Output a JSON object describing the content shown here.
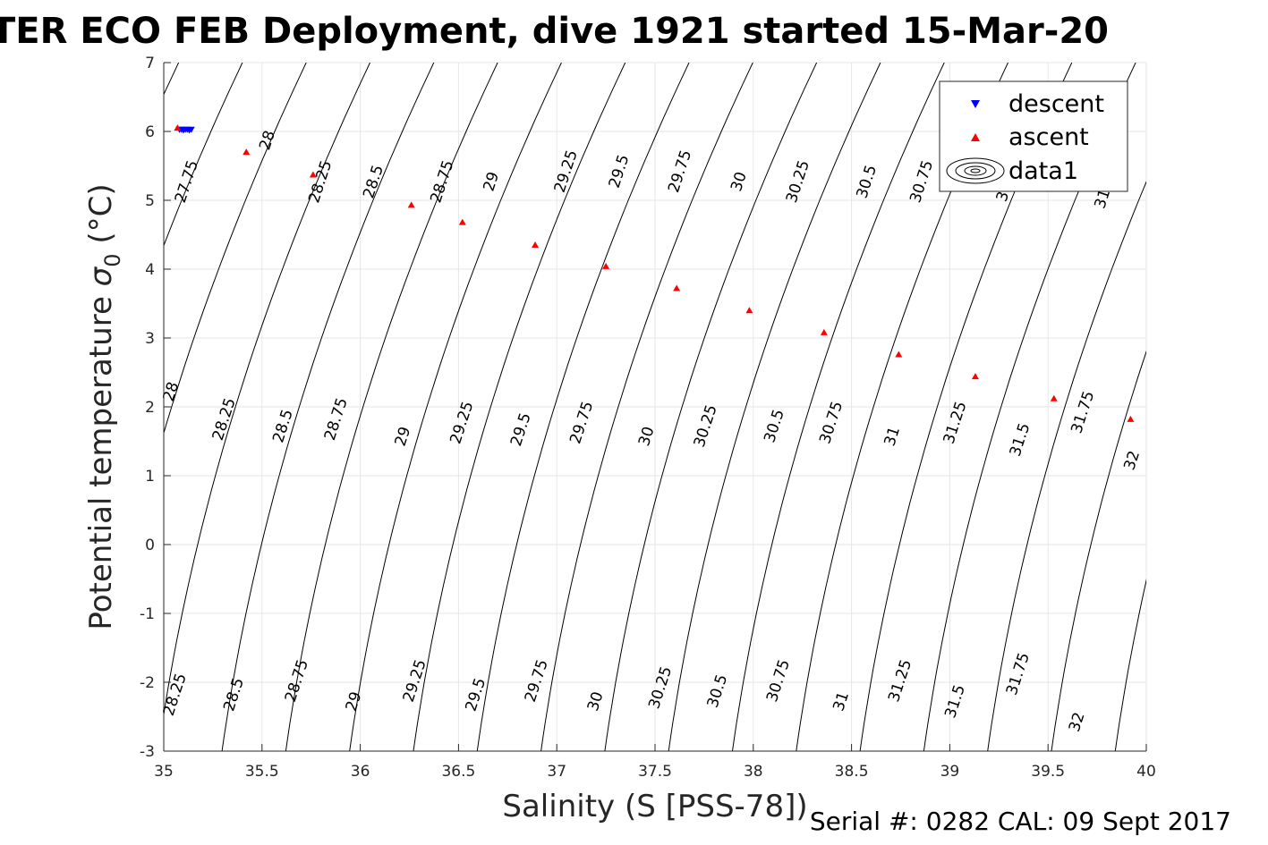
{
  "title": "TER ECO FEB Deployment, dive 1921 started 15-Mar-20",
  "footer": "Serial #: 0282  CAL: 09 Sept 2017",
  "colors": {
    "descent": "#0000ff",
    "ascent": "#ff0000",
    "contour": "#000000",
    "grid": "#e6e6e6",
    "axis": "#262626"
  },
  "chart_data": {
    "type": "scatter",
    "xlabel": "Salinity (S [PSS-78])",
    "ylabel_main": "Potential temperature ",
    "ylabel_sigma": "σ",
    "ylabel_sub": "0",
    "ylabel_unit": " (°C)",
    "xlim": [
      35,
      40
    ],
    "ylim": [
      -3,
      7
    ],
    "xticks": [
      35,
      35.5,
      36,
      36.5,
      37,
      37.5,
      38,
      38.5,
      39,
      39.5,
      40
    ],
    "xtick_labels": [
      "35",
      "35.5",
      "36",
      "36.5",
      "37",
      "37.5",
      "38",
      "38.5",
      "39",
      "39.5",
      "40"
    ],
    "yticks": [
      -3,
      -2,
      -1,
      0,
      1,
      2,
      3,
      4,
      5,
      6,
      7
    ],
    "ytick_labels": [
      "-3",
      "-2",
      "-1",
      "0",
      "1",
      "2",
      "3",
      "4",
      "5",
      "6",
      "7"
    ],
    "grid": true,
    "legend": {
      "position": "top-right",
      "entries": [
        {
          "label": "descent",
          "marker": "triangle-down"
        },
        {
          "label": "ascent",
          "marker": "triangle-up"
        },
        {
          "label": "data1",
          "marker": "contour"
        }
      ]
    },
    "series": [
      {
        "name": "descent",
        "points": [
          [
            35.08,
            6.03
          ],
          [
            35.09,
            6.03
          ],
          [
            35.1,
            6.02
          ],
          [
            35.11,
            6.03
          ],
          [
            35.12,
            6.03
          ],
          [
            35.13,
            6.02
          ],
          [
            35.14,
            6.03
          ]
        ]
      },
      {
        "name": "ascent",
        "points": [
          [
            35.07,
            6.05
          ],
          [
            35.42,
            5.7
          ],
          [
            35.76,
            5.37
          ],
          [
            36.26,
            4.93
          ],
          [
            36.52,
            4.68
          ],
          [
            36.89,
            4.35
          ],
          [
            37.25,
            4.04
          ],
          [
            37.61,
            3.72
          ],
          [
            37.98,
            3.4
          ],
          [
            38.36,
            3.08
          ],
          [
            38.74,
            2.76
          ],
          [
            39.13,
            2.44
          ],
          [
            39.53,
            2.12
          ],
          [
            39.92,
            1.82
          ]
        ]
      }
    ],
    "contour_levels": [
      "27.75",
      "28",
      "28.25",
      "28.5",
      "28.75",
      "29",
      "29.25",
      "29.5",
      "29.75",
      "30",
      "30.25",
      "30.5",
      "30.75",
      "31",
      "31.25",
      "31.5",
      "31.75",
      "32"
    ],
    "contour_labels": [
      {
        "text": "27.75",
        "x": 35.14,
        "y": 5.25
      },
      {
        "text": "28",
        "x": 35.55,
        "y": 5.85
      },
      {
        "text": "28.25",
        "x": 35.82,
        "y": 5.25
      },
      {
        "text": "28.5",
        "x": 36.09,
        "y": 5.25
      },
      {
        "text": "28.75",
        "x": 36.44,
        "y": 5.25
      },
      {
        "text": "29",
        "x": 36.69,
        "y": 5.25
      },
      {
        "text": "29.25",
        "x": 37.07,
        "y": 5.4
      },
      {
        "text": "29.5",
        "x": 37.34,
        "y": 5.4
      },
      {
        "text": "29.75",
        "x": 37.65,
        "y": 5.4
      },
      {
        "text": "30",
        "x": 37.95,
        "y": 5.25
      },
      {
        "text": "30.25",
        "x": 38.25,
        "y": 5.25
      },
      {
        "text": "30.5",
        "x": 38.6,
        "y": 5.25
      },
      {
        "text": "30.75",
        "x": 38.88,
        "y": 5.25
      },
      {
        "text": "31",
        "x": 39.3,
        "y": 5.1
      },
      {
        "text": "31",
        "x": 39.8,
        "y": 5.0
      },
      {
        "text": "28",
        "x": 35.06,
        "y": 2.2
      },
      {
        "text": "28.25",
        "x": 35.33,
        "y": 1.8
      },
      {
        "text": "28.5",
        "x": 35.63,
        "y": 1.7
      },
      {
        "text": "28.75",
        "x": 35.9,
        "y": 1.8
      },
      {
        "text": "29",
        "x": 36.24,
        "y": 1.55
      },
      {
        "text": "29.25",
        "x": 36.54,
        "y": 1.75
      },
      {
        "text": "29.5",
        "x": 36.84,
        "y": 1.65
      },
      {
        "text": "29.75",
        "x": 37.15,
        "y": 1.75
      },
      {
        "text": "30",
        "x": 37.48,
        "y": 1.55
      },
      {
        "text": "30.25",
        "x": 37.78,
        "y": 1.7
      },
      {
        "text": "30.5",
        "x": 38.13,
        "y": 1.7
      },
      {
        "text": "30.75",
        "x": 38.42,
        "y": 1.75
      },
      {
        "text": "31",
        "x": 38.73,
        "y": 1.55
      },
      {
        "text": "31.25",
        "x": 39.05,
        "y": 1.75
      },
      {
        "text": "31.5",
        "x": 39.38,
        "y": 1.5
      },
      {
        "text": "31.75",
        "x": 39.7,
        "y": 1.9
      },
      {
        "text": "32",
        "x": 39.95,
        "y": 1.2
      },
      {
        "text": "28.25",
        "x": 35.08,
        "y": -2.2
      },
      {
        "text": "28.5",
        "x": 35.38,
        "y": -2.2
      },
      {
        "text": "28.75",
        "x": 35.7,
        "y": -2.0
      },
      {
        "text": "29",
        "x": 35.99,
        "y": -2.3
      },
      {
        "text": "29.25",
        "x": 36.3,
        "y": -2.0
      },
      {
        "text": "29.5",
        "x": 36.61,
        "y": -2.2
      },
      {
        "text": "29.75",
        "x": 36.92,
        "y": -2.0
      },
      {
        "text": "30",
        "x": 37.22,
        "y": -2.3
      },
      {
        "text": "30.25",
        "x": 37.55,
        "y": -2.1
      },
      {
        "text": "30.5",
        "x": 37.84,
        "y": -2.15
      },
      {
        "text": "30.75",
        "x": 38.15,
        "y": -2.0
      },
      {
        "text": "31",
        "x": 38.47,
        "y": -2.3
      },
      {
        "text": "31.25",
        "x": 38.77,
        "y": -2.0
      },
      {
        "text": "31.5",
        "x": 39.05,
        "y": -2.3
      },
      {
        "text": "31.75",
        "x": 39.37,
        "y": -1.9
      },
      {
        "text": "32",
        "x": 39.67,
        "y": -2.6
      }
    ]
  }
}
